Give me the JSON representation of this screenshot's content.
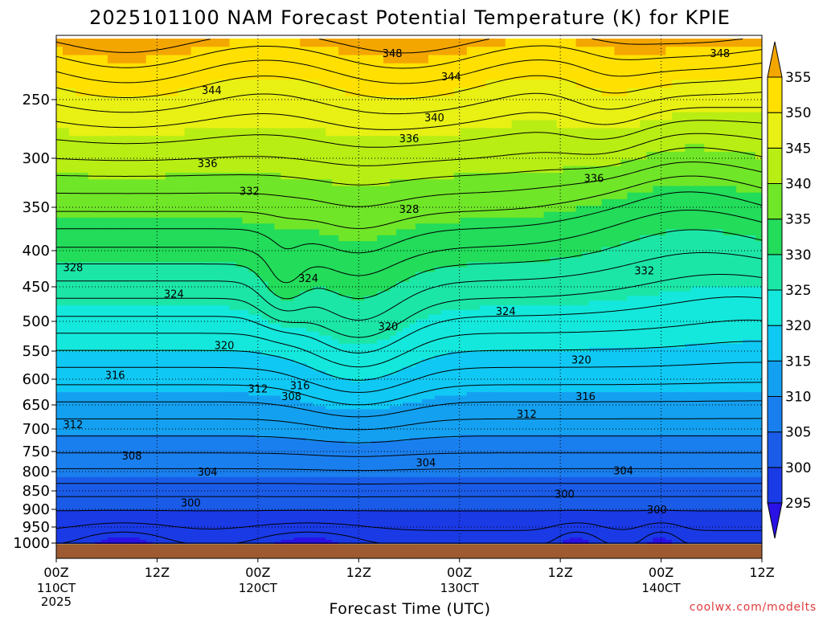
{
  "chart_data": {
    "type": "heatmap",
    "title": "2025101100 NAM Forecast Potential Temperature (K) for KPIE",
    "xlabel": "Forecast Time (UTC)",
    "ylabel": "",
    "credit": "coolwx.com/modelts",
    "y_ticks": [
      250,
      300,
      350,
      400,
      450,
      500,
      550,
      600,
      650,
      700,
      750,
      800,
      850,
      900,
      950,
      1000
    ],
    "y_tick_labels": [
      "250",
      "300",
      "350",
      "400",
      "450",
      "500",
      "550",
      "600",
      "650",
      "700",
      "750",
      "800",
      "850",
      "900",
      "950",
      "1000"
    ],
    "ylim_hPa": [
      200,
      1010
    ],
    "x_ticks_hours": [
      0,
      12,
      24,
      36,
      48,
      60,
      72,
      84
    ],
    "x_tick_labels": [
      "00Z",
      "12Z",
      "00Z",
      "12Z",
      "00Z",
      "12Z",
      "00Z",
      "12Z"
    ],
    "x_date_labels": [
      {
        "hour": 0,
        "text": "110CT"
      },
      {
        "hour": 24,
        "text": "120CT"
      },
      {
        "hour": 48,
        "text": "130CT"
      },
      {
        "hour": 72,
        "text": "140CT"
      }
    ],
    "year_label": "2025",
    "xlim_hours": [
      0,
      84
    ],
    "colorbar": {
      "levels": [
        295,
        300,
        305,
        310,
        315,
        320,
        325,
        330,
        335,
        340,
        345,
        350,
        355
      ],
      "labels": [
        "295",
        "300",
        "305",
        "310",
        "315",
        "320",
        "325",
        "330",
        "335",
        "340",
        "345",
        "350",
        "355"
      ],
      "colors": [
        "#2a12e6",
        "#1a3ae6",
        "#1a5ce8",
        "#1a7fee",
        "#14a0f0",
        "#10c8f4",
        "#14e8dc",
        "#1ce6a6",
        "#22dc5a",
        "#70e628",
        "#b8ee14",
        "#e8f014",
        "#ffe000",
        "#f4a600"
      ]
    },
    "contour_labels": [
      {
        "text": "348",
        "hour": 40,
        "hPa": 212
      },
      {
        "text": "348",
        "hour": 79,
        "hPa": 212
      },
      {
        "text": "344",
        "hour": 18.5,
        "hPa": 242
      },
      {
        "text": "344",
        "hour": 47,
        "hPa": 231
      },
      {
        "text": "340",
        "hour": 45,
        "hPa": 265
      },
      {
        "text": "336",
        "hour": 42,
        "hPa": 283
      },
      {
        "text": "336",
        "hour": 18,
        "hPa": 305
      },
      {
        "text": "336",
        "hour": 64,
        "hPa": 320
      },
      {
        "text": "332",
        "hour": 23,
        "hPa": 333
      },
      {
        "text": "328",
        "hour": 42,
        "hPa": 352
      },
      {
        "text": "328",
        "hour": 2,
        "hPa": 423
      },
      {
        "text": "332",
        "hour": 70,
        "hPa": 427
      },
      {
        "text": "324",
        "hour": 30,
        "hPa": 438
      },
      {
        "text": "324",
        "hour": 14,
        "hPa": 460
      },
      {
        "text": "324",
        "hour": 53.5,
        "hPa": 485
      },
      {
        "text": "320",
        "hour": 39.5,
        "hPa": 508
      },
      {
        "text": "320",
        "hour": 20,
        "hPa": 540
      },
      {
        "text": "320",
        "hour": 62.5,
        "hPa": 565
      },
      {
        "text": "316",
        "hour": 7,
        "hPa": 592
      },
      {
        "text": "316",
        "hour": 29,
        "hPa": 612
      },
      {
        "text": "312",
        "hour": 24,
        "hPa": 618
      },
      {
        "text": "308",
        "hour": 28,
        "hPa": 633
      },
      {
        "text": "316",
        "hour": 63,
        "hPa": 633
      },
      {
        "text": "312",
        "hour": 56,
        "hPa": 668
      },
      {
        "text": "312",
        "hour": 2,
        "hPa": 690
      },
      {
        "text": "308",
        "hour": 9,
        "hPa": 760
      },
      {
        "text": "304",
        "hour": 44,
        "hPa": 777
      },
      {
        "text": "304",
        "hour": 18,
        "hPa": 800
      },
      {
        "text": "304",
        "hour": 67.5,
        "hPa": 797
      },
      {
        "text": "300",
        "hour": 60.5,
        "hPa": 858
      },
      {
        "text": "300",
        "hour": 16,
        "hPa": 882
      },
      {
        "text": "300",
        "hour": 71.5,
        "hPa": 900
      }
    ],
    "grid": true
  }
}
